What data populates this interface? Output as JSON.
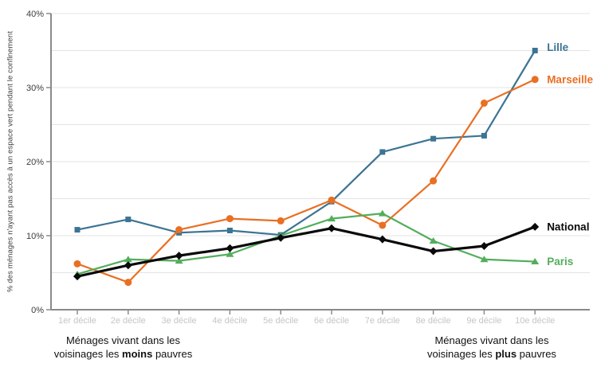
{
  "chart_data": {
    "type": "line",
    "title": "",
    "ylabel": "% des ménages n'ayant pas accès à un espace vert pendant le confinement",
    "xlabel": "",
    "ylim": [
      0,
      40
    ],
    "yticks": [
      0,
      10,
      20,
      30,
      40
    ],
    "ytick_labels": [
      "0%",
      "10%",
      "20%",
      "30%",
      "40%"
    ],
    "grid_step": 5,
    "grid": "on",
    "legend_position": "end-of-line-labels",
    "categories": [
      "1er décile",
      "2e décile",
      "3e décile",
      "4e décile",
      "5e décile",
      "6e décile",
      "7e décile",
      "8e décile",
      "9e décile",
      "10e décile"
    ],
    "series": [
      {
        "name": "Lille",
        "color": "#3b7494",
        "marker": "square",
        "line_width": 2.2,
        "label_dy": -4,
        "values": [
          10.8,
          12.2,
          10.4,
          10.7,
          10.1,
          14.6,
          21.3,
          23.1,
          23.5,
          35.0
        ]
      },
      {
        "name": "Marseille",
        "color": "#e96f23",
        "marker": "circle",
        "line_width": 2.2,
        "label_dy": 0,
        "values": [
          6.2,
          3.7,
          10.8,
          12.3,
          12.0,
          14.8,
          11.4,
          17.4,
          27.9,
          31.1
        ]
      },
      {
        "name": "Paris",
        "color": "#53ad5c",
        "marker": "triangle",
        "line_width": 2.2,
        "label_dy": 0,
        "values": [
          4.8,
          6.8,
          6.6,
          7.5,
          10.0,
          12.3,
          13.0,
          9.3,
          6.8,
          6.5
        ]
      },
      {
        "name": "National",
        "color": "#0a0a0a",
        "marker": "diamond",
        "line_width": 3.2,
        "label_dy": 0,
        "values": [
          4.5,
          6.0,
          7.3,
          8.3,
          9.7,
          11.0,
          9.5,
          7.9,
          8.6,
          11.2
        ]
      }
    ],
    "annotations": {
      "left": {
        "line1": "Ménages vivant dans les",
        "line2_pre": "voisinages les ",
        "line2_bold": "moins",
        "line2_post": " pauvres"
      },
      "right": {
        "line1": "Ménages vivant dans les",
        "line2_pre": "voisinages les ",
        "line2_bold": "plus",
        "line2_post": " pauvres"
      }
    }
  },
  "colors": {
    "grid": "#e3e3e3",
    "axis": "#8a8a8a",
    "x_tick_label": "#c5c5c5",
    "y_tick_label": "#3c3c3c"
  }
}
